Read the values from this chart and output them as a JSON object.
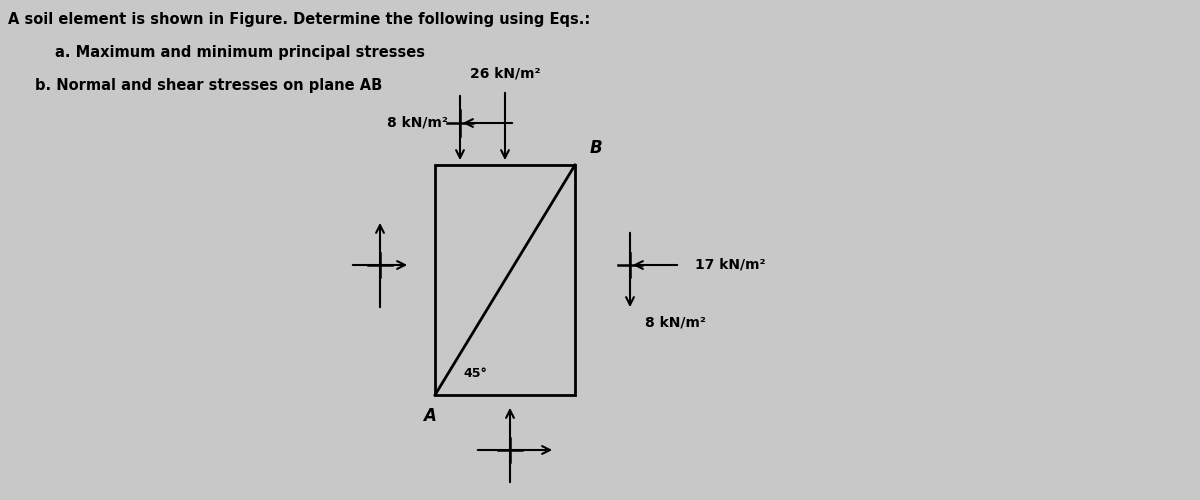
{
  "title_line1": "A soil element is shown in Figure. Determine the following using Eqs.:",
  "title_line2a": "a. Maximum and minimum principal stresses",
  "title_line2b": "b. Normal and shear stresses on plane AB",
  "bg_color": "#c8c8c8",
  "box_color": "#000000",
  "arrow_color": "#000000",
  "stress_top_val": "26 kN/m²",
  "stress_top_shear_val": "8 kN/m²",
  "stress_right_val": "17 kN/m²",
  "stress_right_shear_val": "8 kN/m²",
  "angle_label": "45°",
  "label_A": "A",
  "label_B": "B",
  "text_color": "#000000"
}
